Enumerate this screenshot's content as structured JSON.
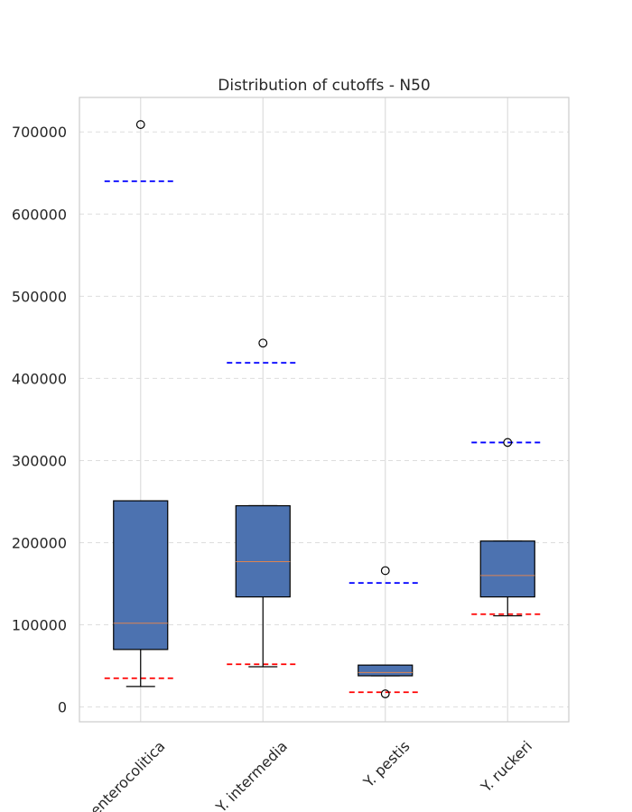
{
  "chart_data": {
    "type": "box",
    "title": "Distribution of cutoffs - N50",
    "xlabel": "",
    "ylabel": "",
    "categories": [
      "Y. enterocolitica",
      "Y. intermedia",
      "Y. pestis",
      "Y. ruckeri"
    ],
    "ylim": [
      -18000,
      742000
    ],
    "yticks": [
      0,
      100000,
      200000,
      300000,
      400000,
      500000,
      600000,
      700000
    ],
    "grid": {
      "y": true,
      "y_style": "dashed",
      "x": true
    },
    "box_color": "#4c72b0",
    "median_color": "#dd8452",
    "upper_line_color": "#0000ff",
    "lower_line_color": "#ff0000",
    "boxes": [
      {
        "category": "Y. enterocolitica",
        "whisker_low": 25000,
        "q1": 70000,
        "median": 102000,
        "q3": 251000,
        "whisker_high": 251000,
        "outliers": [
          709000
        ],
        "upper_line": 640000,
        "lower_line": 35000
      },
      {
        "category": "Y. intermedia",
        "whisker_low": 49000,
        "q1": 134000,
        "median": 177000,
        "q3": 245000,
        "whisker_high": 245000,
        "outliers": [
          443000
        ],
        "upper_line": 419000,
        "lower_line": 52000
      },
      {
        "category": "Y. pestis",
        "whisker_low": 38000,
        "q1": 38000,
        "median": 42000,
        "q3": 51000,
        "whisker_high": 51000,
        "outliers": [
          166000,
          16000
        ],
        "upper_line": 151000,
        "lower_line": 18000
      },
      {
        "category": "Y. ruckeri",
        "whisker_low": 111000,
        "q1": 134000,
        "median": 160000,
        "q3": 202000,
        "whisker_high": 202000,
        "outliers": [
          322000
        ],
        "upper_line": 322000,
        "lower_line": 113000
      }
    ]
  }
}
